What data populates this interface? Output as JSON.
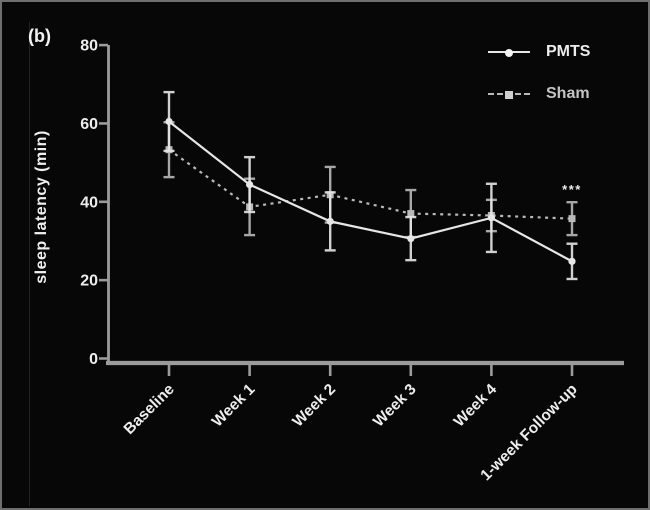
{
  "chart_data": {
    "type": "line",
    "title": "",
    "panel_label": "(b)",
    "ylabel": "sleep latency (min)",
    "xlabel": "",
    "ylim": [
      0,
      80
    ],
    "yticks": [
      0,
      20,
      40,
      60,
      80
    ],
    "grid": false,
    "legend_position": "top-right",
    "categories": [
      "Baseline",
      "Week 1",
      "Week 2",
      "Week 3",
      "Week 4",
      "1-week Follow-up"
    ],
    "series": [
      {
        "name": "PMTS",
        "line_style": "solid",
        "marker": "circle",
        "color": "#e6e6e6",
        "values": [
          60.5,
          44.4,
          35.0,
          30.6,
          35.9,
          24.8
        ],
        "errors": [
          7.5,
          7.0,
          7.4,
          5.5,
          8.7,
          4.5
        ]
      },
      {
        "name": "Sham",
        "line_style": "dashed",
        "marker": "square",
        "color": "#b9b9b9",
        "values": [
          53.3,
          38.7,
          41.8,
          37.0,
          36.5,
          35.7
        ],
        "errors": [
          7.0,
          7.2,
          7.1,
          6.0,
          4.0,
          4.2
        ]
      }
    ],
    "annotations": [
      {
        "text": "***",
        "x_category": "1-week Follow-up",
        "y": 42
      }
    ],
    "colors": {
      "background": "#070707",
      "axis": "#9b9b9b",
      "text": "#ededed",
      "border": "#6e6e6e"
    }
  }
}
